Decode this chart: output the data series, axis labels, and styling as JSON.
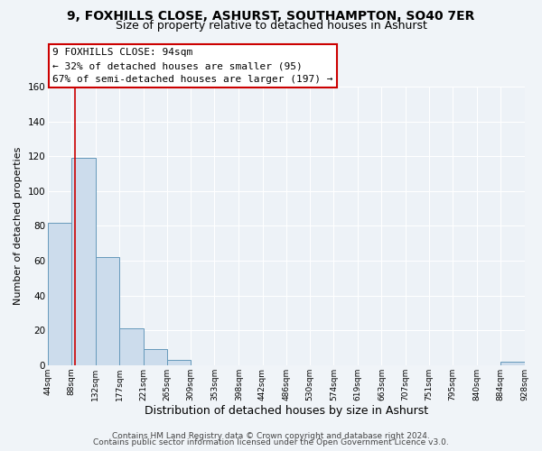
{
  "title1": "9, FOXHILLS CLOSE, ASHURST, SOUTHAMPTON, SO40 7ER",
  "title2": "Size of property relative to detached houses in Ashurst",
  "xlabel": "Distribution of detached houses by size in Ashurst",
  "ylabel": "Number of detached properties",
  "bin_edges": [
    44,
    88,
    132,
    177,
    221,
    265,
    309,
    353,
    398,
    442,
    486,
    530,
    574,
    619,
    663,
    707,
    751,
    795,
    840,
    884,
    928
  ],
  "bar_heights": [
    82,
    119,
    62,
    21,
    9,
    3,
    0,
    0,
    0,
    0,
    0,
    0,
    0,
    0,
    0,
    0,
    0,
    0,
    0,
    2
  ],
  "tick_labels": [
    "44sqm",
    "88sqm",
    "132sqm",
    "177sqm",
    "221sqm",
    "265sqm",
    "309sqm",
    "353sqm",
    "398sqm",
    "442sqm",
    "486sqm",
    "530sqm",
    "574sqm",
    "619sqm",
    "663sqm",
    "707sqm",
    "751sqm",
    "795sqm",
    "840sqm",
    "884sqm",
    "928sqm"
  ],
  "bar_color": "#ccdcec",
  "bar_edge_color": "#6699bb",
  "vline_x": 94,
  "vline_color": "#cc0000",
  "ylim": [
    0,
    160
  ],
  "yticks": [
    0,
    20,
    40,
    60,
    80,
    100,
    120,
    140,
    160
  ],
  "annotation_line1": "9 FOXHILLS CLOSE: 94sqm",
  "annotation_line2": "← 32% of detached houses are smaller (95)",
  "annotation_line3": "67% of semi-detached houses are larger (197) →",
  "box_facecolor": "white",
  "box_edgecolor": "#cc0000",
  "footer1": "Contains HM Land Registry data © Crown copyright and database right 2024.",
  "footer2": "Contains public sector information licensed under the Open Government Licence v3.0.",
  "bg_color": "#f0f4f8",
  "plot_bg_color": "#edf2f7",
  "grid_color": "white",
  "title1_fontsize": 10,
  "title2_fontsize": 9,
  "annotation_fontsize": 8,
  "footer_fontsize": 6.5,
  "ylabel_fontsize": 8,
  "xlabel_fontsize": 9
}
